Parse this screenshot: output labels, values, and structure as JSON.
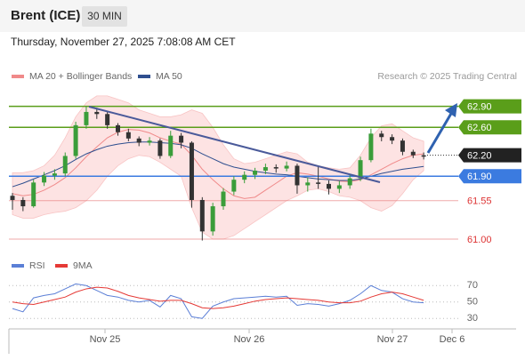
{
  "header": {
    "title": "Brent (ICE)",
    "interval": "30 MIN",
    "timestamp": "Thursday, November 27, 2025 7:08:08 AM CET"
  },
  "chart_data": {
    "type": "candlestick",
    "legend": {
      "ma20": {
        "name": "MA 20 + Bollinger Bands",
        "color": "#f08a8a"
      },
      "ma50": {
        "name": "MA 50",
        "color": "#2f4f8f"
      }
    },
    "credit": "Research © 2025 Trading Central",
    "ylim": [
      60.86,
      63.15
    ],
    "x_labels": [
      "Nov 25",
      "Nov 26",
      "Nov 27",
      "Dec 6"
    ],
    "levels": [
      {
        "value": 62.9,
        "label": "62.90",
        "color": "#5a9e1a",
        "style": "box"
      },
      {
        "value": 62.6,
        "label": "62.60",
        "color": "#5a9e1a",
        "style": "box"
      },
      {
        "value": 62.2,
        "label": "62.20",
        "color": "#222222",
        "style": "current"
      },
      {
        "value": 61.9,
        "label": "61.90",
        "color": "#3b7be0",
        "style": "box"
      },
      {
        "value": 61.55,
        "label": "61.55",
        "color": "#e57373",
        "style": "text"
      },
      {
        "value": 61.0,
        "label": "61.00",
        "color": "#e57373",
        "style": "text"
      }
    ],
    "up_color": "#3a9d3a",
    "down_color": "#333333",
    "candles": [
      {
        "open": 61.62,
        "high": 61.66,
        "low": 61.42,
        "close": 61.56
      },
      {
        "open": 61.56,
        "high": 61.6,
        "low": 61.4,
        "close": 61.47
      },
      {
        "open": 61.47,
        "high": 61.85,
        "low": 61.45,
        "close": 61.81
      },
      {
        "open": 61.81,
        "high": 61.96,
        "low": 61.76,
        "close": 61.91
      },
      {
        "open": 61.91,
        "high": 62.0,
        "low": 61.85,
        "close": 61.94
      },
      {
        "open": 61.94,
        "high": 62.24,
        "low": 61.9,
        "close": 62.19
      },
      {
        "open": 62.19,
        "high": 62.68,
        "low": 62.15,
        "close": 62.63
      },
      {
        "open": 62.63,
        "high": 62.9,
        "low": 62.58,
        "close": 62.82
      },
      {
        "open": 62.82,
        "high": 62.88,
        "low": 62.72,
        "close": 62.79
      },
      {
        "open": 62.79,
        "high": 62.82,
        "low": 62.58,
        "close": 62.63
      },
      {
        "open": 62.63,
        "high": 62.66,
        "low": 62.48,
        "close": 62.53
      },
      {
        "open": 62.53,
        "high": 62.58,
        "low": 62.4,
        "close": 62.44
      },
      {
        "open": 62.44,
        "high": 62.47,
        "low": 62.33,
        "close": 62.38
      },
      {
        "open": 62.38,
        "high": 62.46,
        "low": 62.34,
        "close": 62.41
      },
      {
        "open": 62.41,
        "high": 62.44,
        "low": 62.15,
        "close": 62.19
      },
      {
        "open": 62.19,
        "high": 62.55,
        "low": 62.16,
        "close": 62.48
      },
      {
        "open": 62.48,
        "high": 62.52,
        "low": 62.3,
        "close": 62.38
      },
      {
        "open": 62.38,
        "high": 62.4,
        "low": 61.45,
        "close": 61.56
      },
      {
        "open": 61.56,
        "high": 61.6,
        "low": 60.98,
        "close": 61.11
      },
      {
        "open": 61.11,
        "high": 61.52,
        "low": 61.05,
        "close": 61.47
      },
      {
        "open": 61.47,
        "high": 61.73,
        "low": 61.42,
        "close": 61.68
      },
      {
        "open": 61.68,
        "high": 61.9,
        "low": 61.63,
        "close": 61.85
      },
      {
        "open": 61.85,
        "high": 61.97,
        "low": 61.8,
        "close": 61.92
      },
      {
        "open": 61.92,
        "high": 62.02,
        "low": 61.86,
        "close": 61.98
      },
      {
        "open": 61.98,
        "high": 62.08,
        "low": 61.93,
        "close": 62.03
      },
      {
        "open": 62.03,
        "high": 62.07,
        "low": 61.95,
        "close": 62.01
      },
      {
        "open": 62.01,
        "high": 62.11,
        "low": 61.97,
        "close": 62.05
      },
      {
        "open": 62.05,
        "high": 62.08,
        "low": 61.65,
        "close": 61.77
      },
      {
        "open": 61.77,
        "high": 61.88,
        "low": 61.68,
        "close": 61.81
      },
      {
        "open": 61.81,
        "high": 62.05,
        "low": 61.72,
        "close": 61.79
      },
      {
        "open": 61.79,
        "high": 61.84,
        "low": 61.64,
        "close": 61.72
      },
      {
        "open": 61.72,
        "high": 61.83,
        "low": 61.66,
        "close": 61.77
      },
      {
        "open": 61.77,
        "high": 61.92,
        "low": 61.72,
        "close": 61.87
      },
      {
        "open": 61.87,
        "high": 62.18,
        "low": 61.83,
        "close": 62.13
      },
      {
        "open": 62.13,
        "high": 62.58,
        "low": 62.1,
        "close": 62.51
      },
      {
        "open": 62.51,
        "high": 62.55,
        "low": 62.4,
        "close": 62.46
      },
      {
        "open": 62.46,
        "high": 62.5,
        "low": 62.36,
        "close": 62.41
      },
      {
        "open": 62.41,
        "high": 62.44,
        "low": 62.2,
        "close": 62.25
      },
      {
        "open": 62.25,
        "high": 62.28,
        "low": 62.16,
        "close": 62.2
      },
      {
        "open": 62.2,
        "high": 62.24,
        "low": 62.14,
        "close": 62.18
      }
    ],
    "ma50": [
      61.75,
      61.8,
      61.86,
      61.92,
      61.98,
      62.05,
      62.14,
      62.22,
      62.28,
      62.33,
      62.36,
      62.38,
      62.39,
      62.39,
      62.38,
      62.37,
      62.35,
      62.3,
      62.22,
      62.15,
      62.08,
      62.03,
      62.0,
      61.97,
      61.95,
      61.93,
      61.92,
      61.9,
      61.88,
      61.86,
      61.85,
      61.84,
      61.84,
      61.86,
      61.9,
      61.94,
      61.97,
      62.0,
      62.02,
      62.04
    ],
    "ma20": [
      61.65,
      61.62,
      61.64,
      61.7,
      61.78,
      61.88,
      62.02,
      62.18,
      62.32,
      62.45,
      62.53,
      62.57,
      62.56,
      62.52,
      62.45,
      62.4,
      62.36,
      62.2,
      62.0,
      61.85,
      61.72,
      61.62,
      61.58,
      61.6,
      61.7,
      61.8,
      61.9,
      61.95,
      61.93,
      61.9,
      61.86,
      61.83,
      61.82,
      61.85,
      61.92,
      62.0,
      62.08,
      62.15,
      62.2,
      62.22
    ],
    "bb_upper": [
      61.95,
      61.95,
      61.98,
      62.05,
      62.2,
      62.45,
      62.75,
      62.95,
      63.05,
      63.05,
      63.0,
      62.95,
      62.85,
      62.8,
      62.75,
      62.75,
      62.78,
      62.85,
      62.8,
      62.6,
      62.35,
      62.15,
      62.08,
      62.1,
      62.15,
      62.2,
      62.25,
      62.22,
      62.1,
      62.05,
      62.02,
      62.0,
      62.02,
      62.2,
      62.45,
      62.62,
      62.65,
      62.55,
      62.45,
      62.4
    ],
    "bb_lower": [
      61.35,
      61.3,
      61.3,
      61.35,
      61.38,
      61.4,
      61.45,
      61.55,
      61.7,
      61.9,
      62.05,
      62.15,
      62.2,
      62.18,
      62.1,
      62.0,
      61.9,
      61.45,
      61.1,
      61.0,
      61.0,
      61.05,
      61.15,
      61.25,
      61.35,
      61.45,
      61.55,
      61.62,
      61.7,
      61.72,
      61.68,
      61.62,
      61.6,
      61.55,
      61.45,
      61.4,
      61.48,
      61.65,
      61.85,
      61.98
    ],
    "rsi": {
      "ylim": [
        20,
        80
      ],
      "yticks": [
        70,
        50,
        30
      ],
      "series": [
        {
          "name": "RSI",
          "color": "#5b7fd6",
          "values": [
            42,
            38,
            55,
            58,
            60,
            66,
            72,
            70,
            64,
            58,
            56,
            52,
            50,
            52,
            44,
            58,
            54,
            32,
            30,
            45,
            50,
            54,
            55,
            56,
            57,
            56,
            57,
            46,
            48,
            47,
            45,
            48,
            52,
            60,
            70,
            64,
            62,
            54,
            50,
            49
          ]
        },
        {
          "name": "9MA",
          "color": "#e53935",
          "values": [
            50,
            48,
            47,
            50,
            53,
            56,
            62,
            66,
            68,
            67,
            63,
            58,
            55,
            53,
            51,
            52,
            52,
            48,
            43,
            42,
            43,
            45,
            48,
            51,
            53,
            54,
            55,
            54,
            53,
            52,
            50,
            49,
            49,
            51,
            56,
            60,
            62,
            60,
            56,
            52
          ]
        }
      ]
    }
  }
}
